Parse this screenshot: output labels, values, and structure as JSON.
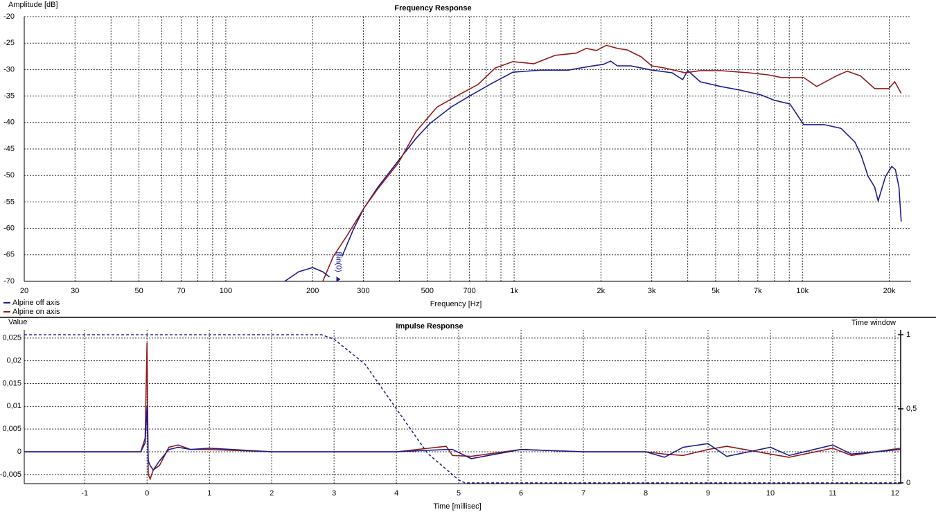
{
  "chart_data": [
    {
      "type": "line",
      "title": "Frequency Response",
      "xlabel": "Frequency [Hz]",
      "ylabel": "Amplitude [dB]",
      "xscale": "log",
      "xlim": [
        20,
        23800
      ],
      "ylim": [
        -70,
        -20
      ],
      "xticks": [
        20,
        30,
        50,
        70,
        100,
        200,
        300,
        500,
        700,
        {
          "value": 1000,
          "label": "1k"
        },
        {
          "value": 2000,
          "label": "2k"
        },
        {
          "value": 3000,
          "label": "3k"
        },
        {
          "value": 5000,
          "label": "5k"
        },
        {
          "value": 7000,
          "label": "7k"
        },
        {
          "value": 10000,
          "label": "10k"
        },
        {
          "value": 20000,
          "label": "20k"
        }
      ],
      "yticks": [
        -20,
        -25,
        -30,
        -35,
        -40,
        -45,
        -50,
        -55,
        -60,
        -65,
        -70
      ],
      "grid": true,
      "minor_grid": true,
      "legend": "bottom-left",
      "annotation": {
        "x": 250,
        "text": "Bin(0)"
      },
      "series": [
        {
          "name": "Alpine off axis",
          "color": "#1c1c8f",
          "x": [
            160,
            179,
            200,
            217,
            229,
            null,
            253,
            278,
            302,
            337,
            397,
            457,
            510,
            604,
            711,
            837,
            990,
            1237,
            1544,
            1825,
            2040,
            2160,
            2280,
            2540,
            3000,
            3530,
            3840,
            4000,
            4420,
            5200,
            6100,
            7200,
            7990,
            9050,
            10100,
            11900,
            13600,
            15200,
            16000,
            16900,
            17800,
            18300,
            19400,
            20400,
            21000,
            21600,
            22000
          ],
          "values": [
            -70,
            -68.2,
            -67.4,
            -68.2,
            -69.2,
            null,
            -65.3,
            -60,
            -56.1,
            -52.2,
            -47.2,
            -43,
            -40.2,
            -37.1,
            -34.8,
            -32.6,
            -30.5,
            -30.1,
            -30.1,
            -29.4,
            -29,
            -28.4,
            -29.3,
            -29.3,
            -30.1,
            -30.6,
            -31.9,
            -30.2,
            -32.3,
            -33.2,
            -33.9,
            -34.8,
            -35.8,
            -36.5,
            -40.4,
            -40.4,
            -41.1,
            -43.7,
            -46.3,
            -50.2,
            -52.2,
            -54.8,
            -50.2,
            -48.3,
            -48.9,
            -52.2,
            -58.7
          ]
        },
        {
          "name": "Alpine on axis",
          "color": "#8f1c1c",
          "x": [
            217,
            236,
            263,
            302,
            337,
            397,
            457,
            540,
            637,
            750,
            860,
            990,
            1170,
            1390,
            1640,
            1780,
            1930,
            2090,
            2280,
            2470,
            2760,
            3000,
            3330,
            3920,
            4420,
            5200,
            6500,
            7600,
            8450,
            10100,
            11200,
            13100,
            14300,
            15900,
            17800,
            19900,
            20900,
            22000
          ],
          "values": [
            -70,
            -65.3,
            -61.4,
            -56.1,
            -52.5,
            -47.6,
            -41.7,
            -37.1,
            -34.9,
            -32.8,
            -29.7,
            -28.5,
            -28.9,
            -27.3,
            -26.9,
            -26,
            -26.4,
            -25.4,
            -26,
            -26.3,
            -27.6,
            -29.3,
            -29.7,
            -30.6,
            -30.2,
            -30.2,
            -30.6,
            -31,
            -31.5,
            -31.5,
            -33.2,
            -31.2,
            -30.3,
            -31.2,
            -33.6,
            -33.6,
            -32.3,
            -34.5
          ]
        }
      ]
    },
    {
      "type": "line",
      "title": "Impulse Response",
      "xlabel": "Time [millisec]",
      "ylabel": "Value",
      "y2label": "Time window",
      "xlim": [
        -1.97,
        12.09
      ],
      "ylim": [
        -0.007,
        0.0268
      ],
      "y2lim": [
        -0.005,
        1.033
      ],
      "xticks": [
        -1,
        0,
        1,
        2,
        3,
        4,
        5,
        6,
        7,
        8,
        9,
        10,
        11,
        12
      ],
      "yticks": [
        {
          "value": -0.005,
          "label": "-0,005"
        },
        0,
        {
          "value": 0.005,
          "label": "0,005"
        },
        {
          "value": 0.01,
          "label": "0,01"
        },
        {
          "value": 0.015,
          "label": "0,015"
        },
        {
          "value": 0.02,
          "label": "0,02"
        },
        {
          "value": 0.025,
          "label": "0,025"
        }
      ],
      "y2ticks": [
        0,
        {
          "value": 0.5,
          "label": "0,5"
        },
        1
      ],
      "grid": true,
      "x": [
        -1.97,
        -0.5,
        -0.1,
        -0.03,
        0,
        0.02,
        0.05,
        0.1,
        0.2,
        0.35,
        0.5,
        0.7,
        1,
        2,
        3,
        4,
        4.8,
        4.9,
        5.2,
        6,
        7,
        8,
        8.3,
        8.6,
        9,
        9.3,
        10,
        10.3,
        11,
        11.3,
        12.09
      ],
      "series": [
        {
          "color": "#8f1c1c",
          "values": [
            0,
            0,
            0,
            0.003,
            0.024,
            -0.005,
            -0.006,
            -0.004,
            -0.003,
            0.001,
            0.0015,
            0.0005,
            0.0005,
            0,
            0,
            0,
            0.0012,
            -0.0008,
            -0.001,
            0.0005,
            0,
            0,
            -0.0005,
            -0.0008,
            0.0005,
            0.0012,
            -0.0005,
            -0.0012,
            0.0008,
            -0.0008,
            0.0008
          ]
        },
        {
          "color": "#1c1c8f",
          "values": [
            0,
            0,
            0,
            0.002,
            0.01,
            -0.002,
            -0.003,
            -0.004,
            -0.002,
            0.0005,
            0.001,
            0.0005,
            0.0008,
            0,
            0,
            0,
            0.0005,
            0.0005,
            -0.0015,
            0.0005,
            0,
            0,
            -0.0012,
            0.001,
            0.0018,
            -0.001,
            0.001,
            -0.0008,
            0.0015,
            -0.0005,
            0.0005
          ]
        },
        {
          "color": "#1c1c8f",
          "axis": "y2",
          "style": "dashed",
          "x": [
            -1.97,
            2.8,
            3,
            3.5,
            4,
            4.5,
            5,
            5.1,
            12.09
          ],
          "values": [
            1,
            1,
            0.97,
            0.8,
            0.5,
            0.2,
            0.02,
            0,
            0
          ]
        }
      ]
    }
  ]
}
